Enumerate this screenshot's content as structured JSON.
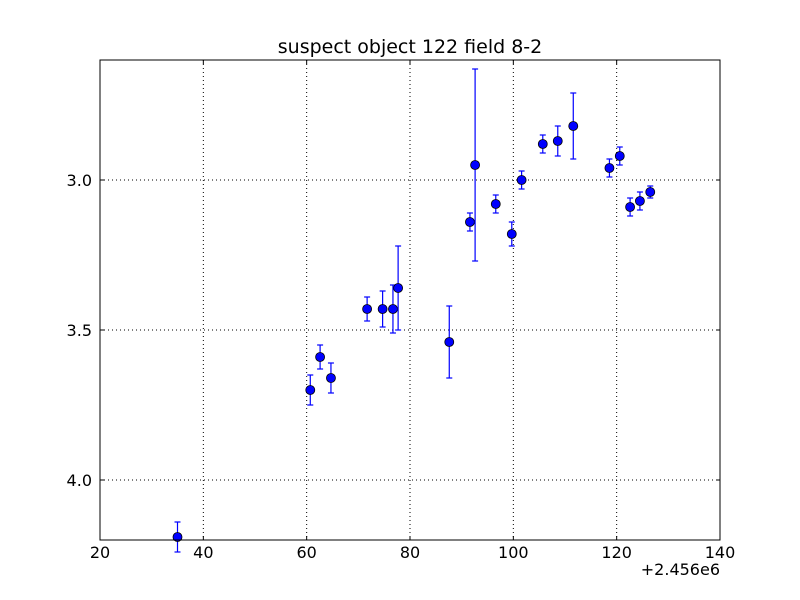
{
  "chart_data": {
    "type": "scatter",
    "title": "suspect object 122 field 8-2",
    "xlabel": "",
    "ylabel": "",
    "x_offset_label": "+2.456e6",
    "xlim": [
      20,
      140
    ],
    "ylim": [
      4.2,
      2.6
    ],
    "y_inverted": true,
    "grid": true,
    "x_ticks": [
      "20",
      "40",
      "60",
      "80",
      "100",
      "120",
      "140"
    ],
    "y_ticks": [
      "3.0",
      "3.5",
      "4.0"
    ],
    "marker_color": "#0000ff",
    "points": [
      {
        "x": 35.0,
        "y": 4.19,
        "err": 0.05
      },
      {
        "x": 60.7,
        "y": 3.7,
        "err": 0.05
      },
      {
        "x": 62.6,
        "y": 3.59,
        "err": 0.04
      },
      {
        "x": 64.7,
        "y": 3.66,
        "err": 0.05
      },
      {
        "x": 71.7,
        "y": 3.43,
        "err": 0.04
      },
      {
        "x": 74.7,
        "y": 3.43,
        "err": 0.06
      },
      {
        "x": 76.7,
        "y": 3.43,
        "err": 0.08
      },
      {
        "x": 77.7,
        "y": 3.36,
        "err": 0.14
      },
      {
        "x": 87.6,
        "y": 3.54,
        "err": 0.12
      },
      {
        "x": 91.6,
        "y": 3.14,
        "err": 0.03
      },
      {
        "x": 92.6,
        "y": 2.95,
        "err": 0.32
      },
      {
        "x": 96.6,
        "y": 3.08,
        "err": 0.03
      },
      {
        "x": 99.7,
        "y": 3.18,
        "err": 0.04
      },
      {
        "x": 101.6,
        "y": 3.0,
        "err": 0.03
      },
      {
        "x": 105.7,
        "y": 2.88,
        "err": 0.03
      },
      {
        "x": 108.6,
        "y": 2.87,
        "err": 0.05
      },
      {
        "x": 111.6,
        "y": 2.82,
        "err": 0.11
      },
      {
        "x": 118.6,
        "y": 2.96,
        "err": 0.03
      },
      {
        "x": 120.6,
        "y": 2.92,
        "err": 0.03
      },
      {
        "x": 122.6,
        "y": 3.09,
        "err": 0.03
      },
      {
        "x": 124.5,
        "y": 3.07,
        "err": 0.03
      },
      {
        "x": 126.5,
        "y": 3.04,
        "err": 0.02
      }
    ]
  }
}
